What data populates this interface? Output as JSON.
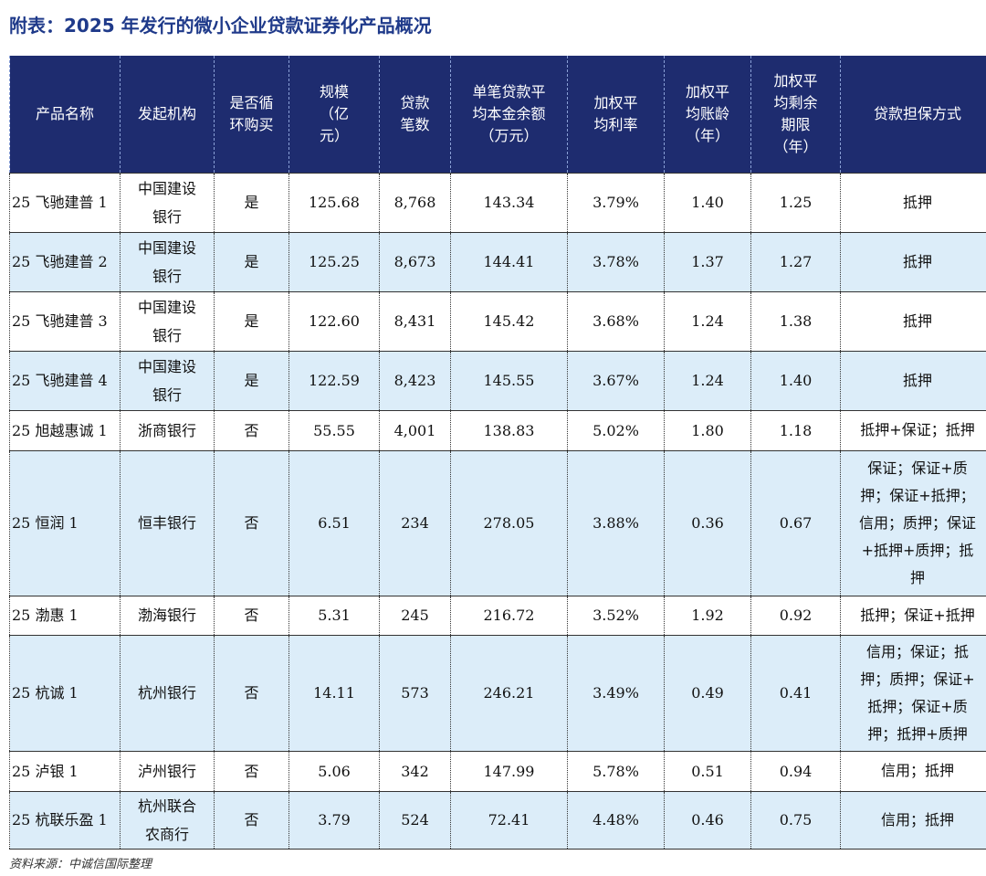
{
  "title": "附表：2025 年发行的微小企业贷款证券化产品概况",
  "source": "资料来源：中诚信国际整理",
  "table": {
    "headers": [
      "产品名称",
      "发起机构",
      "是否循\n环购买",
      "规模\n（亿\n元）",
      "贷款\n笔数",
      "单笔贷款平\n均本金余额\n（万元）",
      "加权平\n均利率",
      "加权平\n均账龄\n（年）",
      "加权平\n均剩余\n期限\n（年）",
      "贷款担保方式"
    ],
    "rows": [
      [
        "25 飞驰建普 1",
        "中国建设\n银行",
        "是",
        "125.68",
        "8,768",
        "143.34",
        "3.79%",
        "1.40",
        "1.25",
        "抵押"
      ],
      [
        "25 飞驰建普 2",
        "中国建设\n银行",
        "是",
        "125.25",
        "8,673",
        "144.41",
        "3.78%",
        "1.37",
        "1.27",
        "抵押"
      ],
      [
        "25 飞驰建普 3",
        "中国建设\n银行",
        "是",
        "122.60",
        "8,431",
        "145.42",
        "3.68%",
        "1.24",
        "1.38",
        "抵押"
      ],
      [
        "25 飞驰建普 4",
        "中国建设\n银行",
        "是",
        "122.59",
        "8,423",
        "145.55",
        "3.67%",
        "1.24",
        "1.40",
        "抵押"
      ],
      [
        "25 旭越惠诚 1",
        "浙商银行",
        "否",
        "55.55",
        "4,001",
        "138.83",
        "5.02%",
        "1.80",
        "1.18",
        "抵押+保证；抵押"
      ],
      [
        "25 恒润 1",
        "恒丰银行",
        "否",
        "6.51",
        "234",
        "278.05",
        "3.88%",
        "0.36",
        "0.67",
        "保证；保证+质\n押；保证+抵押；\n信用；质押；保证\n+抵押+质押；抵\n押"
      ],
      [
        "25 渤惠 1",
        "渤海银行",
        "否",
        "5.31",
        "245",
        "216.72",
        "3.52%",
        "1.92",
        "0.92",
        "抵押；保证+抵押"
      ],
      [
        "25 杭诚 1",
        "杭州银行",
        "否",
        "14.11",
        "573",
        "246.21",
        "3.49%",
        "0.49",
        "0.41",
        "信用；保证；抵\n押；质押；保证+\n抵押；保证+质\n押；抵押+质押"
      ],
      [
        "25 泸银 1",
        "泸州银行",
        "否",
        "5.06",
        "342",
        "147.99",
        "5.78%",
        "0.51",
        "0.94",
        "信用；抵押"
      ],
      [
        "25 杭联乐盈 1",
        "杭州联合\n农商行",
        "否",
        "3.79",
        "524",
        "72.41",
        "4.48%",
        "0.46",
        "0.75",
        "信用；抵押"
      ]
    ],
    "header_bg": "#1e2c6f",
    "alt_row_bg": "#dcedf9",
    "title_color": "#1f3a8a"
  }
}
